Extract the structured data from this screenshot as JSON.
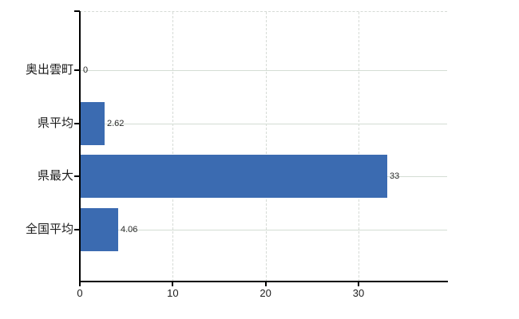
{
  "chart_data": {
    "type": "bar",
    "orientation": "horizontal",
    "title": "",
    "xlabel": "",
    "ylabel": "",
    "categories": [
      "奥出雲町",
      "県平均",
      "県最大",
      "全国平均"
    ],
    "values": [
      0,
      2.62,
      33,
      4.06
    ],
    "value_labels": [
      "0",
      "2.62",
      "33",
      "4.06"
    ],
    "x_ticks": [
      0,
      10,
      20,
      30
    ],
    "x_tick_labels": [
      "0",
      "10",
      "20",
      "30"
    ],
    "xlim": [
      0,
      39.5
    ],
    "grid": true,
    "legend": false,
    "gridline_style": "horizontal solid, vertical dashed, top border dashed",
    "bar_color": "#3b6bb1",
    "gridline_color": "#d4ddd4",
    "axis_color": "#000000",
    "text_color": "#1c1c1c",
    "background_color": "#ffffff"
  }
}
